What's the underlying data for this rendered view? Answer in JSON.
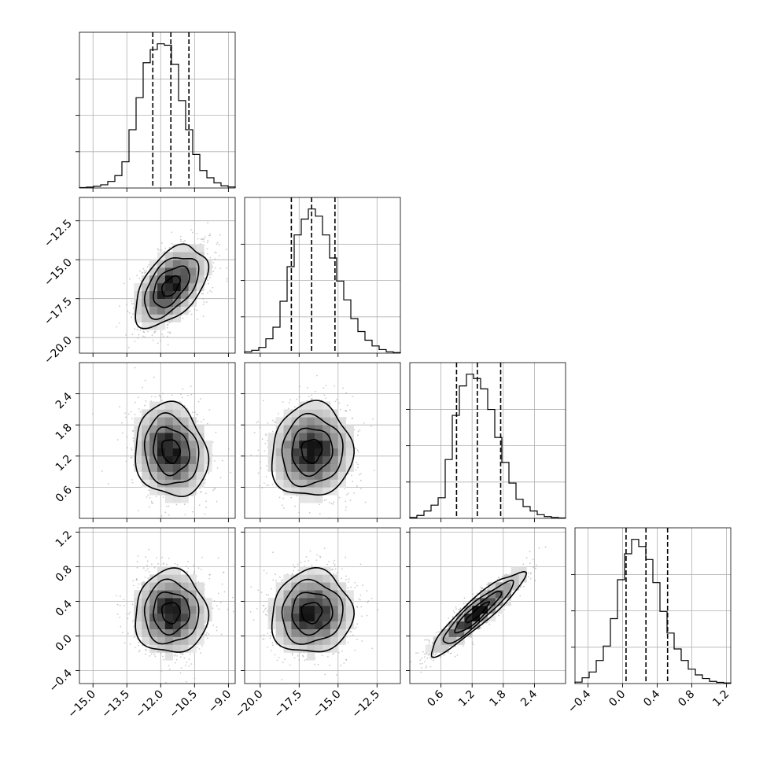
{
  "chart_data": {
    "type": "corner",
    "title": "",
    "grid": true,
    "n_params": 4,
    "params": [
      {
        "index": 0,
        "range": [
          -15.6,
          -8.7
        ],
        "ticks": [
          -15.0,
          -13.5,
          -12.0,
          -10.5,
          -9.0
        ],
        "tick_labels": [
          "−15.0",
          "−13.5",
          "−12.0",
          "−10.5",
          "−9.0"
        ],
        "quantiles": [
          -12.35,
          -11.55,
          -10.75
        ],
        "hist_values": [
          0.003,
          0.006,
          0.012,
          0.022,
          0.045,
          0.085,
          0.18,
          0.4,
          0.62,
          0.86,
          0.95,
          0.99,
          0.98,
          0.85,
          0.6,
          0.4,
          0.23,
          0.12,
          0.07,
          0.035,
          0.015,
          0.007
        ]
      },
      {
        "index": 1,
        "range": [
          -21.0,
          -11.0
        ],
        "ticks": [
          -20.0,
          -17.5,
          -15.0,
          -12.5
        ],
        "tick_labels": [
          "−20.0",
          "−17.5",
          "−15.0",
          "−12.5"
        ],
        "quantiles": [
          -18.0,
          -16.7,
          -15.2
        ],
        "hist_values": [
          0.01,
          0.02,
          0.04,
          0.1,
          0.18,
          0.36,
          0.6,
          0.82,
          0.93,
          1.0,
          0.95,
          0.82,
          0.66,
          0.5,
          0.37,
          0.24,
          0.15,
          0.09,
          0.05,
          0.025,
          0.01,
          0.004
        ]
      },
      {
        "index": 2,
        "range": [
          0.0,
          3.0
        ],
        "ticks": [
          0.6,
          1.2,
          1.8,
          2.4
        ],
        "tick_labels": [
          "0.6",
          "1.2",
          "1.8",
          "2.4"
        ],
        "quantiles": [
          0.9,
          1.3,
          1.75
        ],
        "hist_values": [
          0.006,
          0.02,
          0.05,
          0.09,
          0.14,
          0.4,
          0.7,
          0.9,
          0.98,
          0.95,
          0.88,
          0.74,
          0.55,
          0.38,
          0.24,
          0.13,
          0.08,
          0.05,
          0.025,
          0.012,
          0.006,
          0.003
        ]
      },
      {
        "index": 3,
        "range": [
          -0.55,
          1.25
        ],
        "ticks": [
          -0.4,
          0.0,
          0.4,
          0.8,
          1.2
        ],
        "tick_labels": [
          "−0.4",
          "0.0",
          "0.4",
          "0.8",
          "1.2"
        ],
        "quantiles": [
          0.04,
          0.27,
          0.52
        ],
        "hist_values": [
          0.01,
          0.04,
          0.08,
          0.16,
          0.26,
          0.45,
          0.72,
          0.9,
          1.0,
          0.95,
          0.86,
          0.7,
          0.5,
          0.35,
          0.24,
          0.16,
          0.1,
          0.06,
          0.035,
          0.015,
          0.008,
          0.004
        ]
      }
    ],
    "joint": [
      {
        "row": 1,
        "col": 0,
        "mean": [
          -11.55,
          -16.7
        ],
        "sd": [
          0.8,
          1.3
        ],
        "corr": 0.5
      },
      {
        "row": 2,
        "col": 0,
        "mean": [
          -11.55,
          1.3
        ],
        "sd": [
          0.8,
          0.45
        ],
        "corr": -0.12
      },
      {
        "row": 2,
        "col": 1,
        "mean": [
          -16.7,
          1.3
        ],
        "sd": [
          1.3,
          0.45
        ],
        "corr": 0.05
      },
      {
        "row": 3,
        "col": 0,
        "mean": [
          -11.55,
          0.27
        ],
        "sd": [
          0.8,
          0.24
        ],
        "corr": 0.0
      },
      {
        "row": 3,
        "col": 1,
        "mean": [
          -16.7,
          0.27
        ],
        "sd": [
          1.3,
          0.24
        ],
        "corr": 0.05
      },
      {
        "row": 3,
        "col": 2,
        "mean": [
          1.3,
          0.27
        ],
        "sd": [
          0.45,
          0.24
        ],
        "corr": 0.92
      }
    ],
    "contour_levels_sigma": [
      0.5,
      1.0,
      1.5,
      2.0
    ],
    "colors": {
      "line": "#000000",
      "grid": "#b0b0b0",
      "scatter": "#9e9e9e",
      "frame": "#000000"
    }
  }
}
